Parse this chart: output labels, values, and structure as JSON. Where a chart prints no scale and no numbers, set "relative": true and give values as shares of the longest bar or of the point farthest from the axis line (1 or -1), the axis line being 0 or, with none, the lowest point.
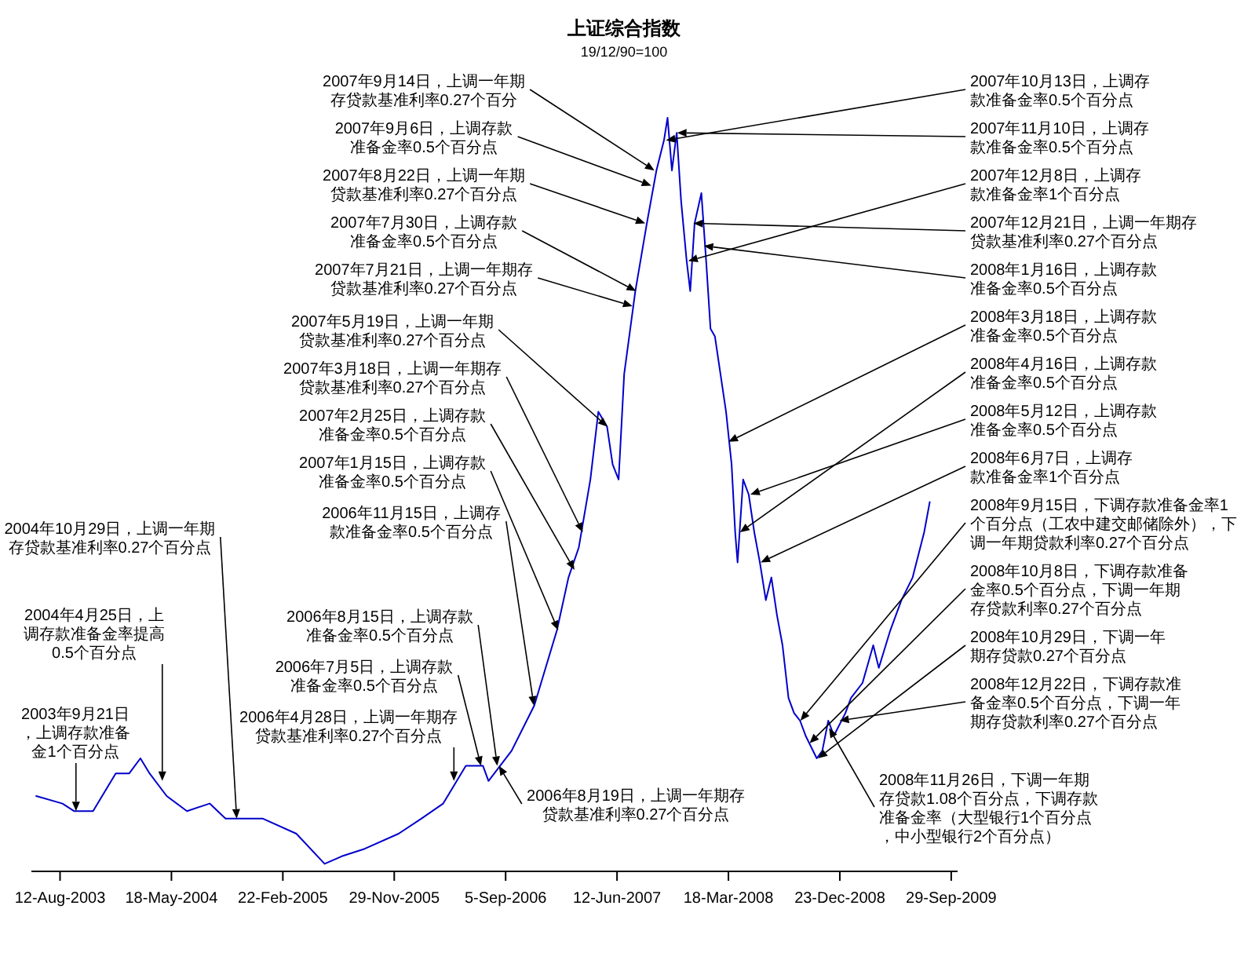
{
  "chart_data": {
    "type": "line",
    "title": "上证综合指数",
    "subtitle": "19/12/90=100",
    "relative": true,
    "color": "#0000cc",
    "x": [
      "2003-06-13",
      "2003-08-18",
      "2003-09-16",
      "2003-11-03",
      "2003-12-30",
      "2004-02-02",
      "2004-03-01",
      "2004-03-24",
      "2004-05-06",
      "2004-06-26",
      "2004-08-22",
      "2004-10-01",
      "2005-01-03",
      "2005-03-28",
      "2005-06-07",
      "2005-07-20",
      "2005-09-16",
      "2005-12-10",
      "2006-02-05",
      "2006-04-01",
      "2006-05-28",
      "2006-07-10",
      "2006-07-24",
      "2006-09-20",
      "2006-11-16",
      "2007-01-12",
      "2007-02-10",
      "2007-03-08",
      "2007-04-06",
      "2007-04-26",
      "2007-05-18",
      "2007-06-01",
      "2007-06-16",
      "2007-06-30",
      "2007-07-28",
      "2007-08-26",
      "2007-09-19",
      "2007-10-08",
      "2007-10-17",
      "2007-10-28",
      "2007-11-09",
      "2007-11-20",
      "2007-12-04",
      "2007-12-13",
      "2007-12-24",
      "2008-01-10",
      "2008-01-22",
      "2008-02-02",
      "2008-02-13",
      "2008-02-27",
      "2008-03-12",
      "2008-03-26",
      "2008-04-04",
      "2008-04-10",
      "2008-04-24",
      "2008-05-08",
      "2008-05-22",
      "2008-06-05",
      "2008-06-20",
      "2008-07-04",
      "2008-07-18",
      "2008-08-01",
      "2008-08-16",
      "2008-08-30",
      "2008-09-14",
      "2008-09-28",
      "2008-10-26",
      "2008-11-09",
      "2008-11-24",
      "2008-12-08",
      "2009-01-06",
      "2009-01-20",
      "2009-02-18",
      "2009-03-17",
      "2009-03-31",
      "2009-04-29",
      "2009-05-27",
      "2009-06-24",
      "2009-07-23",
      "2009-08-06"
    ],
    "values": [
      0.1,
      0.09,
      0.08,
      0.08,
      0.13,
      0.13,
      0.15,
      0.13,
      0.1,
      0.08,
      0.09,
      0.07,
      0.07,
      0.05,
      0.01,
      0.02,
      0.03,
      0.05,
      0.07,
      0.09,
      0.14,
      0.14,
      0.12,
      0.16,
      0.22,
      0.32,
      0.39,
      0.43,
      0.52,
      0.61,
      0.59,
      0.54,
      0.52,
      0.66,
      0.77,
      0.86,
      0.93,
      0.97,
      1,
      0.93,
      0.98,
      0.89,
      0.81,
      0.77,
      0.86,
      0.9,
      0.81,
      0.72,
      0.71,
      0.66,
      0.61,
      0.54,
      0.45,
      0.41,
      0.52,
      0.5,
      0.45,
      0.41,
      0.36,
      0.39,
      0.34,
      0.3,
      0.23,
      0.21,
      0.2,
      0.18,
      0.15,
      0.16,
      0.2,
      0.18,
      0.21,
      0.23,
      0.25,
      0.3,
      0.27,
      0.32,
      0.36,
      0.39,
      0.45,
      0.49
    ],
    "xlim": [
      "2003-06-01",
      "2009-10-15"
    ],
    "xticks": [
      {
        "value": "2003-08-12",
        "label": "12-Aug-2003"
      },
      {
        "value": "2004-05-18",
        "label": "18-May-2004"
      },
      {
        "value": "2005-02-22",
        "label": "22-Feb-2005"
      },
      {
        "value": "2005-11-29",
        "label": "29-Nov-2005"
      },
      {
        "value": "2006-09-05",
        "label": "5-Sep-2006"
      },
      {
        "value": "2007-06-12",
        "label": "12-Jun-2007"
      },
      {
        "value": "2008-03-18",
        "label": "18-Mar-2008"
      },
      {
        "value": "2008-12-23",
        "label": "23-Dec-2008"
      },
      {
        "value": "2009-09-29",
        "label": "29-Sep-2009"
      }
    ],
    "annotations": [
      {
        "text": "2003年9月21日，上调存款准备金1个百分点",
        "x": "2003-09-21",
        "y": 0.08
      },
      {
        "text": "2004年4月25日，上调存款准备金率提高0.5个百分点",
        "x": "2004-04-25",
        "y": 0.12
      },
      {
        "text": "2004年10月29日，上调一年期存贷款基准利率0.27个百分点",
        "x": "2004-10-29",
        "y": 0.07
      },
      {
        "text": "2006年4月28日，上调一年期存贷款基准利率0.27个百分点",
        "x": "2006-04-28",
        "y": 0.12
      },
      {
        "text": "2006年7月5日，上调存款准备金率0.5个百分点",
        "x": "2006-07-05",
        "y": 0.14
      },
      {
        "text": "2006年8月15日，上调存款准备金率0.5个百分点",
        "x": "2006-08-15",
        "y": 0.14
      },
      {
        "text": "2006年8月19日，上调一年期存贷款基准利率0.27个百分点",
        "x": "2006-08-19",
        "y": 0.14
      },
      {
        "text": "2006年11月15日，上调存款准备金率0.5个百分点",
        "x": "2006-11-15",
        "y": 0.22
      },
      {
        "text": "2007年1月15日，上调存款准备金率0.5个百分点",
        "x": "2007-01-15",
        "y": 0.32
      },
      {
        "text": "2007年2月25日，上调存款准备金率0.5个百分点",
        "x": "2007-02-25",
        "y": 0.4
      },
      {
        "text": "2007年3月18日，上调一年期存贷款基准利率0.27个百分点",
        "x": "2007-03-18",
        "y": 0.45
      },
      {
        "text": "2007年5月19日，上调一年期贷款基准利率0.27个百分点",
        "x": "2007-05-19",
        "y": 0.59
      },
      {
        "text": "2007年7月21日，上调一年期存贷款基准利率0.27个百分点",
        "x": "2007-07-21",
        "y": 0.75
      },
      {
        "text": "2007年7月30日，上调存款准备金率0.5个百分点",
        "x": "2007-07-30",
        "y": 0.77
      },
      {
        "text": "2007年8月22日，上调一年期贷款基准利率0.27个百分点",
        "x": "2007-08-22",
        "y": 0.86
      },
      {
        "text": "2007年9月6日，上调存款准备金率0.5个百分点",
        "x": "2007-09-06",
        "y": 0.91
      },
      {
        "text": "2007年9月14日，上调一年期存贷款基准利率0.27个百分",
        "x": "2007-09-14",
        "y": 0.93
      },
      {
        "text": "2007年10月13日，上调存款准备金率0.5个百分点",
        "x": "2007-10-13",
        "y": 0.97
      },
      {
        "text": "2007年11月10日，上调存款准备金率0.5个百分点",
        "x": "2007-11-10",
        "y": 0.98
      },
      {
        "text": "2007年12月8日，上调存款准备金率1个百分点",
        "x": "2007-12-08",
        "y": 0.81
      },
      {
        "text": "2007年12月21日，上调一年期存贷款基准利率0.27个百分点",
        "x": "2007-12-21",
        "y": 0.86
      },
      {
        "text": "2008年1月16日，上调存款准备金率0.5个百分点",
        "x": "2008-01-16",
        "y": 0.83
      },
      {
        "text": "2008年3月18日，上调存款准备金率0.5个百分点",
        "x": "2008-03-18",
        "y": 0.57
      },
      {
        "text": "2008年4月16日，上调存款准备金率0.5个百分点",
        "x": "2008-04-16",
        "y": 0.45
      },
      {
        "text": "2008年5月12日，上调存款准备金率0.5个百分点",
        "x": "2008-05-12",
        "y": 0.5
      },
      {
        "text": "2008年6月7日，上调存款准备金率1个百分点",
        "x": "2008-06-07",
        "y": 0.41
      },
      {
        "text": "2008年9月15日，下调存款准备金率1个百分点（工农中建交邮储除外），下调一年期贷款利率0.27个百分点",
        "x": "2008-09-15",
        "y": 0.2
      },
      {
        "text": "2008年10月8日，下调存款准备金率0.5个百分点，下调一年期存贷款利率0.27个百分点",
        "x": "2008-10-08",
        "y": 0.17
      },
      {
        "text": "2008年10月29日，下调一年期存贷款0.27个百分点",
        "x": "2008-10-29",
        "y": 0.15
      },
      {
        "text": "2008年11月26日，下调一年期存贷款1.08个百分点，下调存款准备金率（大型银行1个百分点，中小型银行2个百分点）",
        "x": "2008-11-26",
        "y": 0.19
      },
      {
        "text": "2008年12月22日，下调存款准备金率0.5个百分点，下调一年期存贷款利率0.27个百分点",
        "x": "2008-12-22",
        "y": 0.2
      }
    ]
  }
}
